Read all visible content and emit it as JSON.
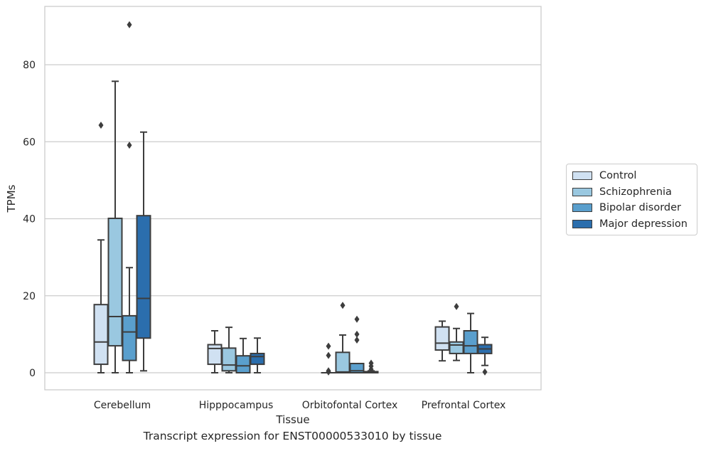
{
  "chart_data": {
    "type": "box",
    "title": "Transcript expression for ENST00000533010 by tissue",
    "xlabel": "Tissue",
    "ylabel": "TPMs",
    "ylim": [
      -4.3,
      95
    ],
    "yticks": [
      0,
      20,
      40,
      60,
      80
    ],
    "grid": "horizontal",
    "legend_position": "right",
    "categories": [
      "Cerebellum",
      "Hipppocampus",
      "Orbitofontal Cortex",
      "Prefrontal Cortex"
    ],
    "series": [
      {
        "name": "Control",
        "color": "#d0e1f2",
        "boxes": [
          {
            "whisker_low": 0,
            "q1": 2.2,
            "median": 8,
            "q3": 17.7,
            "whisker_high": 34.5,
            "outliers": [
              64.3
            ]
          },
          {
            "whisker_low": 0,
            "q1": 2.2,
            "median": 6.3,
            "q3": 7.3,
            "whisker_high": 10.9,
            "outliers": []
          },
          {
            "whisker_low": 0,
            "q1": 0,
            "median": 0,
            "q3": 0,
            "whisker_high": 0,
            "outliers": [
              0.2,
              0.5,
              4.5,
              6.9
            ]
          },
          {
            "whisker_low": 3.1,
            "q1": 5.9,
            "median": 7.7,
            "q3": 11.9,
            "whisker_high": 13.4,
            "outliers": []
          }
        ]
      },
      {
        "name": "Schizophrenia",
        "color": "#9ac8e0",
        "boxes": [
          {
            "whisker_low": 0,
            "q1": 7,
            "median": 14.6,
            "q3": 40.1,
            "whisker_high": 75.7,
            "outliers": []
          },
          {
            "whisker_low": 0,
            "q1": 0.5,
            "median": 2,
            "q3": 6.4,
            "whisker_high": 11.8,
            "outliers": []
          },
          {
            "whisker_low": 0,
            "q1": 0,
            "median": 0.2,
            "q3": 5.3,
            "whisker_high": 9.8,
            "outliers": [
              17.5
            ]
          },
          {
            "whisker_low": 3.2,
            "q1": 5,
            "median": 7.2,
            "q3": 8,
            "whisker_high": 11.5,
            "outliers": [
              17.2
            ]
          }
        ]
      },
      {
        "name": "Bipolar disorder",
        "color": "#5a9fcd",
        "boxes": [
          {
            "whisker_low": 0,
            "q1": 3.2,
            "median": 10.6,
            "q3": 14.8,
            "whisker_high": 27.3,
            "outliers": [
              59.1,
              90.4
            ]
          },
          {
            "whisker_low": 0,
            "q1": 0,
            "median": 1.8,
            "q3": 4.4,
            "whisker_high": 8.9,
            "outliers": []
          },
          {
            "whisker_low": 0,
            "q1": 0,
            "median": 0.5,
            "q3": 2.4,
            "whisker_high": 2.4,
            "outliers": [
              8.5,
              10,
              13.9
            ]
          },
          {
            "whisker_low": 0,
            "q1": 5,
            "median": 7,
            "q3": 10.9,
            "whisker_high": 15.4,
            "outliers": []
          }
        ]
      },
      {
        "name": "Major depression",
        "color": "#2b6ead",
        "boxes": [
          {
            "whisker_low": 0.5,
            "q1": 9,
            "median": 19.3,
            "q3": 40.8,
            "whisker_high": 62.5,
            "outliers": []
          },
          {
            "whisker_low": 0,
            "q1": 2.2,
            "median": 4.2,
            "q3": 5,
            "whisker_high": 9,
            "outliers": []
          },
          {
            "whisker_low": 0,
            "q1": 0,
            "median": 0,
            "q3": 0.3,
            "whisker_high": 0.5,
            "outliers": [
              0.9,
              1.7,
              2.5
            ]
          },
          {
            "whisker_low": 1.9,
            "q1": 5,
            "median": 6.2,
            "q3": 7.3,
            "whisker_high": 9.2,
            "outliers": [
              0.2
            ]
          }
        ]
      }
    ]
  }
}
